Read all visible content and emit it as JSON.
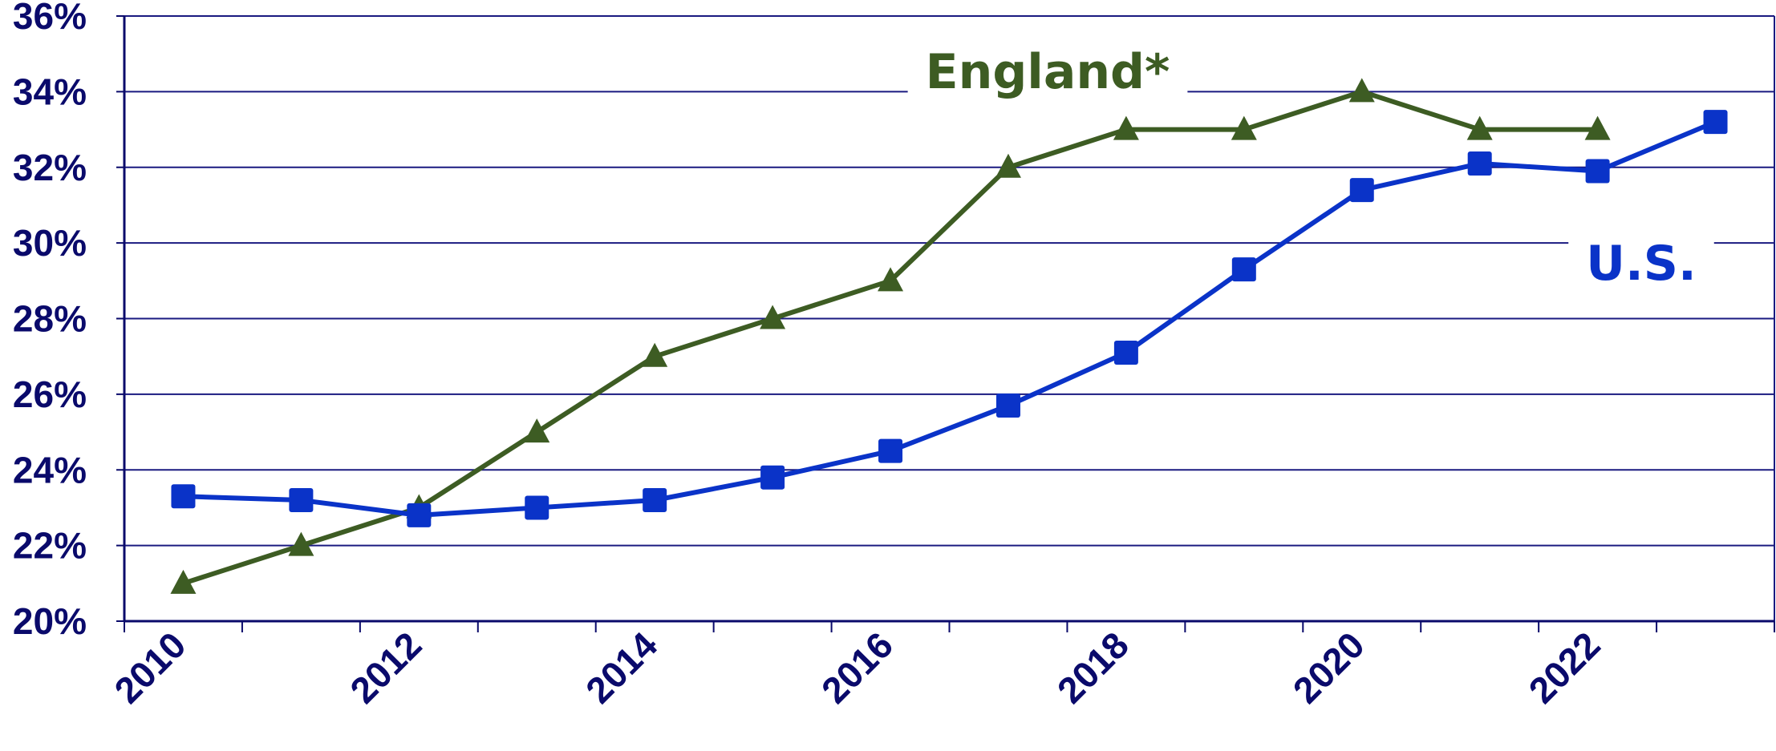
{
  "chart_data": {
    "type": "line",
    "title": "",
    "xlabel": "",
    "ylabel": "",
    "x": [
      2010,
      2011,
      2012,
      2013,
      2014,
      2015,
      2016,
      2017,
      2018,
      2019,
      2020,
      2021,
      2022,
      2023
    ],
    "x_tick_labels": [
      "2010",
      "2012",
      "2014",
      "2016",
      "2018",
      "2020",
      "2022"
    ],
    "ylim": [
      20,
      36
    ],
    "y_tick_labels": [
      "20%",
      "22%",
      "24%",
      "26%",
      "28%",
      "30%",
      "32%",
      "34%",
      "36%"
    ],
    "grid": "horizontal",
    "legend": "inline labels",
    "series": [
      {
        "name": "England*",
        "color": "#3d5c23",
        "marker": "triangle",
        "values": [
          21,
          22,
          23,
          25,
          27,
          28,
          29,
          32,
          33,
          33,
          34,
          33,
          33,
          null
        ]
      },
      {
        "name": "U.S.",
        "color": "#0a33c8",
        "marker": "square",
        "values": [
          23.3,
          23.2,
          22.8,
          23.0,
          23.2,
          23.8,
          24.5,
          25.7,
          27.1,
          29.3,
          31.4,
          32.1,
          31.9,
          33.2
        ]
      }
    ],
    "colors": {
      "axis": "#0a0a6b",
      "grid": "#1a1a80",
      "tick_text": "#0a0a6b"
    }
  }
}
